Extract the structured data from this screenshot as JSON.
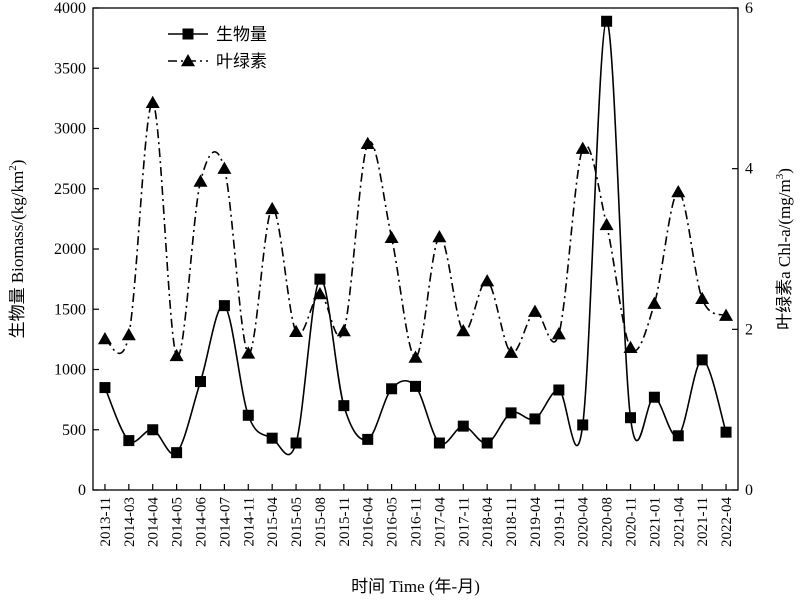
{
  "chart_data": {
    "type": "line",
    "categories": [
      "2013-11",
      "2014-03",
      "2014-04",
      "2014-05",
      "2014-06",
      "2014-07",
      "2014-11",
      "2015-04",
      "2015-05",
      "2015-08",
      "2015-11",
      "2016-04",
      "2016-05",
      "2016-11",
      "2017-04",
      "2017-11",
      "2018-04",
      "2018-11",
      "2019-04",
      "2019-11",
      "2020-04",
      "2020-08",
      "2020-11",
      "2021-01",
      "2021-04",
      "2021-11",
      "2022-04"
    ],
    "xlabel": "时间 Time (年-月)",
    "ylabel_left": {
      "prefix": "生物量 Biomass/(kg/km",
      "sup": "2",
      "suffix": ")"
    },
    "ylabel_right": {
      "prefix": "叶绿素a Chl-a/(mg/m",
      "sup": "3",
      "suffix": ")"
    },
    "ylim_left": [
      0,
      4000
    ],
    "yticks_left": [
      0,
      500,
      1000,
      1500,
      2000,
      2500,
      3000,
      3500,
      4000
    ],
    "ylim_right": [
      0,
      6
    ],
    "yticks_right": [
      0,
      2,
      4,
      6
    ],
    "legend_position": "top-left",
    "grid": false,
    "series": [
      {
        "name": "生物量",
        "axis": "left",
        "marker": "square",
        "line_style": "solid",
        "values": [
          850,
          410,
          500,
          310,
          900,
          1530,
          620,
          430,
          390,
          1750,
          700,
          420,
          840,
          860,
          390,
          530,
          390,
          640,
          590,
          830,
          540,
          3890,
          600,
          770,
          450,
          1080,
          480
        ]
      },
      {
        "name": "叶绿素",
        "axis": "right",
        "marker": "triangle",
        "line_style": "dash-dot",
        "values": [
          1.88,
          1.93,
          4.82,
          1.67,
          3.84,
          4.0,
          1.7,
          3.5,
          1.97,
          2.44,
          1.98,
          4.31,
          3.14,
          1.65,
          3.15,
          1.98,
          2.6,
          1.71,
          2.22,
          1.94,
          4.25,
          3.3,
          1.77,
          2.32,
          3.71,
          2.38,
          2.17
        ]
      }
    ]
  }
}
